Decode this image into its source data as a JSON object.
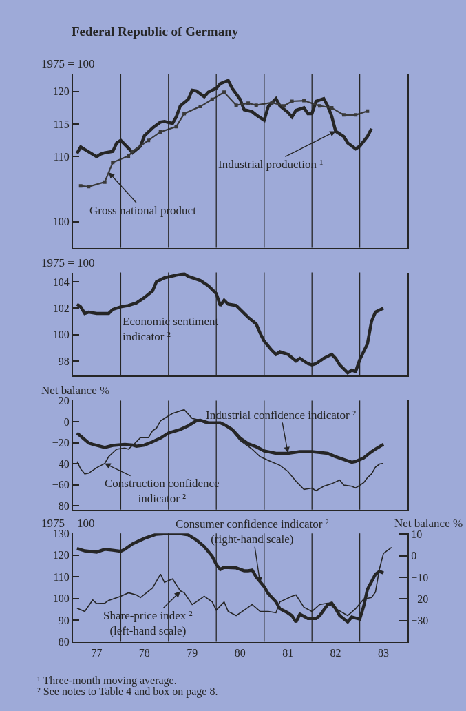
{
  "chart_data": [
    {
      "type": "line",
      "title": "Federal Republic of Germany",
      "ylabel": "1975 = 100",
      "xlim": [
        "1977-01",
        "1984-01"
      ],
      "ylim": [
        96,
        122.7
      ],
      "yticks": [
        100,
        110,
        115,
        120
      ],
      "tick_labels": "y",
      "grid": false,
      "ref_lines": [
        {
          "axis": "x",
          "value": "1978-01"
        },
        {
          "axis": "x",
          "value": "1979-01"
        },
        {
          "axis": "x",
          "value": "1980-01"
        },
        {
          "axis": "x",
          "value": "1981-01"
        },
        {
          "axis": "x",
          "value": "1982-01"
        },
        {
          "axis": "x",
          "value": "1983-01"
        }
      ],
      "series": [
        {
          "color": "#262626",
          "x": [
            "1977-02",
            "1977-03",
            "1977-04",
            "1977-07",
            "1977-08",
            "1977-09",
            "1977-11",
            "1977-12",
            "1978-01",
            "1978-03",
            "1978-04",
            "1978-06",
            "1978-07",
            "1978-09",
            "1978-11",
            "1978-12",
            "1979-02",
            "1979-03",
            "1979-04",
            "1979-06",
            "1979-07",
            "1979-08",
            "1979-10",
            "1979-11",
            "1980-01",
            "1980-02",
            "1980-04",
            "1980-05",
            "1980-07",
            "1980-08",
            "1980-10",
            "1980-11",
            "1981-01",
            "1981-02",
            "1981-04",
            "1981-05",
            "1981-07",
            "1981-08",
            "1981-09",
            "1981-11",
            "1981-12",
            "1982-01",
            "1982-02",
            "1982-04",
            "1982-05",
            "1982-06",
            "1982-07",
            "1982-09",
            "1982-10",
            "1982-12",
            "1983-01",
            "1983-03",
            "1983-04"
          ],
          "values": [
            110.5,
            111.5,
            111.1,
            110.0,
            110.4,
            110.6,
            110.8,
            112.1,
            112.5,
            111.3,
            110.6,
            111.6,
            113.2,
            114.4,
            115.3,
            115.4,
            115.1,
            116.1,
            117.8,
            118.8,
            120.2,
            120.1,
            119.2,
            119.9,
            120.5,
            121.2,
            121.7,
            120.5,
            118.8,
            117.2,
            116.9,
            116.4,
            115.6,
            117.7,
            118.9,
            117.8,
            116.8,
            116.1,
            117.1,
            117.5,
            116.6,
            116.6,
            118.5,
            118.9,
            117.8,
            116.2,
            113.9,
            113.1,
            112.1,
            111.2,
            111.6,
            113.1,
            114.3
          ]
        },
        {
          "color": "#3a3a3a",
          "marker": "square",
          "x": [
            "1977-03",
            "1977-05",
            "1977-09",
            "1977-11",
            "1978-03",
            "1978-04",
            "1978-08",
            "1978-11",
            "1979-03",
            "1979-05",
            "1979-09",
            "1979-12",
            "1980-03",
            "1980-06",
            "1980-09",
            "1980-11",
            "1981-03",
            "1981-06",
            "1981-08",
            "1981-11",
            "1982-03",
            "1982-06",
            "1982-09",
            "1982-12",
            "1983-03"
          ],
          "values": [
            105.5,
            105.4,
            106.1,
            109.1,
            110.1,
            110.8,
            112.5,
            113.8,
            114.6,
            116.6,
            117.7,
            118.8,
            119.9,
            117.9,
            118.2,
            117.9,
            118.3,
            117.8,
            118.5,
            118.6,
            117.8,
            117.5,
            116.4,
            116.4,
            117.0
          ]
        }
      ],
      "annotations": [
        {
          "text": "Industrial production ¹",
          "x": "1982-07",
          "y": 113.9
        },
        {
          "text": "Gross national product",
          "x": "1977-10",
          "y": 107.6
        }
      ]
    },
    {
      "type": "line",
      "ylabel": "1975 = 100",
      "xlim": [
        "1977-01",
        "1984-01"
      ],
      "ylim": [
        96.9,
        104.7
      ],
      "yticks": [
        98,
        100,
        102,
        104
      ],
      "tick_labels": "y",
      "grid": false,
      "ref_lines": [
        {
          "axis": "x",
          "value": "1978-01"
        },
        {
          "axis": "x",
          "value": "1979-01"
        },
        {
          "axis": "x",
          "value": "1980-01"
        },
        {
          "axis": "x",
          "value": "1981-01"
        },
        {
          "axis": "x",
          "value": "1982-01"
        },
        {
          "axis": "x",
          "value": "1983-01"
        }
      ],
      "series": [
        {
          "color": "#262626",
          "x": [
            "1977-02",
            "1977-03",
            "1977-04",
            "1977-05",
            "1977-07",
            "1977-10",
            "1977-11",
            "1978-01",
            "1978-03",
            "1978-05",
            "1978-07",
            "1978-09",
            "1978-10",
            "1978-12",
            "1979-03",
            "1979-05",
            "1979-06",
            "1979-09",
            "1979-11",
            "1980-01",
            "1980-02",
            "1980-03",
            "1980-04",
            "1980-06",
            "1980-08",
            "1980-09",
            "1980-11",
            "1980-12",
            "1981-01",
            "1981-03",
            "1981-04",
            "1981-05",
            "1981-07",
            "1981-09",
            "1981-10",
            "1981-12",
            "1982-01",
            "1982-02",
            "1982-04",
            "1982-06",
            "1982-07",
            "1982-08",
            "1982-10",
            "1982-11",
            "1982-12",
            "1983-01",
            "1983-03",
            "1983-04",
            "1983-05",
            "1983-07"
          ],
          "values": [
            102.3,
            102.1,
            101.6,
            101.7,
            101.6,
            101.6,
            101.9,
            102.1,
            102.2,
            102.4,
            102.8,
            103.3,
            104.0,
            104.3,
            104.5,
            104.6,
            104.4,
            104.1,
            103.7,
            103.1,
            102.2,
            102.6,
            102.3,
            102.2,
            101.6,
            101.3,
            100.8,
            100.1,
            99.5,
            98.8,
            98.5,
            98.7,
            98.5,
            98.0,
            98.2,
            97.8,
            97.7,
            97.8,
            98.2,
            98.5,
            98.2,
            97.7,
            97.1,
            97.3,
            97.2,
            98.1,
            99.3,
            101.0,
            101.7,
            102.0
          ]
        }
      ],
      "annotations": [
        "Economic sentiment\nindicator ²"
      ]
    },
    {
      "type": "line",
      "ylabel": "Net balance %",
      "xlim": [
        "1977-01",
        "1984-01"
      ],
      "ylim": [
        -83.5,
        20
      ],
      "yticks": [
        20,
        0,
        {
          "value": -20,
          "label": "−20"
        },
        {
          "value": -40,
          "label": "−40"
        },
        {
          "value": -60,
          "label": "−60"
        },
        {
          "value": -80,
          "label": "−80"
        }
      ],
      "tick_labels": "y",
      "grid": false,
      "ref_lines": [
        {
          "axis": "x",
          "value": "1978-01"
        },
        {
          "axis": "x",
          "value": "1979-01"
        },
        {
          "axis": "x",
          "value": "1980-01"
        },
        {
          "axis": "x",
          "value": "1981-01"
        },
        {
          "axis": "x",
          "value": "1982-01"
        },
        {
          "axis": "x",
          "value": "1983-01"
        }
      ],
      "series": [
        {
          "color": "#262626",
          "x": [
            "1977-02",
            "1977-03",
            "1977-05",
            "1977-06",
            "1977-09",
            "1977-11",
            "1978-02",
            "1978-04",
            "1978-05",
            "1978-07",
            "1978-09",
            "1978-11",
            "1979-01",
            "1979-04",
            "1979-06",
            "1979-08",
            "1979-09",
            "1979-11",
            "1980-02",
            "1980-03",
            "1980-05",
            "1980-07",
            "1980-09",
            "1980-11",
            "1981-01",
            "1981-02",
            "1981-04",
            "1981-07",
            "1981-10",
            "1982-01",
            "1982-05",
            "1982-07",
            "1982-10",
            "1982-11",
            "1982-12",
            "1983-02",
            "1983-04",
            "1983-05",
            "1983-07"
          ],
          "values": [
            -10.9,
            -13.7,
            -20.3,
            -21.5,
            -24.5,
            -22.6,
            -21.5,
            -22.2,
            -23.3,
            -22.2,
            -19.1,
            -15.6,
            -10.9,
            -7.4,
            -3.9,
            0.8,
            1.3,
            -1.1,
            -1.1,
            -2.7,
            -7.4,
            -15.6,
            -21.0,
            -23.8,
            -27.8,
            -28.5,
            -30.1,
            -30.1,
            -28.5,
            -28.5,
            -30.1,
            -33.2,
            -37.1,
            -38.5,
            -37.8,
            -34.3,
            -28.5,
            -26.1,
            -21.5
          ]
        },
        {
          "color": "#262626",
          "x": [
            "1977-02",
            "1977-03",
            "1977-04",
            "1977-05",
            "1977-07",
            "1977-09",
            "1977-10",
            "1977-12",
            "1978-02",
            "1978-03",
            "1978-05",
            "1978-06",
            "1978-08",
            "1978-09",
            "1978-10",
            "1978-11",
            "1978-12",
            "1979-02",
            "1979-04",
            "1979-05",
            "1979-07",
            "1979-09",
            "1979-10",
            "1980-01",
            "1980-03",
            "1980-05",
            "1980-07",
            "1980-10",
            "1980-12",
            "1981-02",
            "1981-05",
            "1981-07",
            "1981-09",
            "1981-11",
            "1982-01",
            "1982-02",
            "1982-04",
            "1982-06",
            "1982-08",
            "1982-09",
            "1982-11",
            "1982-12",
            "1983-02",
            "1983-03",
            "1983-04",
            "1983-05",
            "1983-06",
            "1983-07"
          ],
          "values": [
            -37.8,
            -44.9,
            -49.6,
            -48.9,
            -43.7,
            -39.7,
            -33.2,
            -26.1,
            -25.0,
            -26.1,
            -19.1,
            -15.1,
            -15.1,
            -8.7,
            -6.2,
            0.8,
            3.1,
            7.8,
            10.2,
            11.3,
            3.1,
            1.3,
            -1.1,
            -1.5,
            -2.7,
            -8.7,
            -17.9,
            -26.1,
            -33.2,
            -36.7,
            -41.4,
            -47.2,
            -56.6,
            -64.3,
            -63.1,
            -65.5,
            -61.3,
            -58.9,
            -55.4,
            -60.1,
            -61.3,
            -62.9,
            -57.8,
            -53.1,
            -49.6,
            -43.2,
            -40.2,
            -39.5
          ]
        }
      ],
      "annotations": [
        {
          "text": "Industrial confidence indicator ²",
          "x": "1981-07",
          "y": -29.6
        },
        {
          "text": "Construction confidence\nindicator ²",
          "x": "1977-09",
          "y": -39.7
        }
      ]
    },
    {
      "type": "line",
      "ylabel": "1975 = 100",
      "y2label": "Net balance %",
      "xlim": [
        "1977-01",
        "1984-01"
      ],
      "xticks": [
        {
          "value": "1977-07",
          "label": "77"
        },
        {
          "value": "1978-07",
          "label": "78"
        },
        {
          "value": "1979-07",
          "label": "79"
        },
        {
          "value": "1980-07",
          "label": "80"
        },
        {
          "value": "1981-07",
          "label": "81"
        },
        {
          "value": "1982-07",
          "label": "82"
        },
        {
          "value": "1983-07",
          "label": "83"
        }
      ],
      "ylim": [
        80,
        130
      ],
      "yticks": [
        80,
        90,
        100,
        110,
        120,
        130
      ],
      "y2lim": [
        -39.8,
        10.4
      ],
      "y2ticks": [
        10,
        0,
        {
          "value": -10,
          "label": "−10"
        },
        {
          "value": -20,
          "label": "−20"
        },
        {
          "value": -30,
          "label": "−30"
        }
      ],
      "grid": false,
      "ref_lines": [
        {
          "axis": "x",
          "value": "1978-01"
        },
        {
          "axis": "x",
          "value": "1979-01"
        },
        {
          "axis": "x",
          "value": "1980-01"
        },
        {
          "axis": "x",
          "value": "1981-01"
        },
        {
          "axis": "x",
          "value": "1982-01"
        },
        {
          "axis": "x",
          "value": "1983-01"
        }
      ],
      "series": [
        {
          "color": "#262626",
          "x": [
            "1977-02",
            "1977-04",
            "1977-06",
            "1977-07",
            "1977-09",
            "1977-10",
            "1977-11",
            "1978-01",
            "1978-03",
            "1978-05",
            "1978-06",
            "1978-09",
            "1978-11",
            "1978-12",
            "1979-02",
            "1979-04",
            "1979-05",
            "1979-07",
            "1979-08",
            "1979-10",
            "1979-12",
            "1980-01",
            "1980-03",
            "1980-04",
            "1980-06",
            "1980-08",
            "1980-10",
            "1980-12",
            "1981-02",
            "1981-04",
            "1981-05",
            "1981-08",
            "1981-09",
            "1981-11",
            "1982-01",
            "1982-03",
            "1982-05",
            "1982-07",
            "1982-10",
            "1982-12",
            "1983-02",
            "1983-04",
            "1983-05",
            "1983-06",
            "1983-07",
            "1983-09"
          ],
          "values": [
            95.5,
            94.0,
            99.3,
            97.6,
            97.8,
            99.1,
            99.7,
            101.0,
            102.6,
            101.6,
            100.4,
            104.8,
            111.2,
            107.4,
            109.0,
            103.5,
            102.6,
            97.2,
            98.4,
            101.0,
            98.4,
            94.6,
            98.4,
            94.0,
            92.1,
            94.6,
            97.2,
            94.0,
            94.0,
            93.4,
            98.4,
            101.0,
            101.6,
            95.9,
            94.0,
            97.2,
            97.8,
            95.3,
            92.1,
            95.3,
            99.7,
            100.4,
            102.9,
            113.7,
            120.7,
            123.5
          ]
        },
        {
          "color": "#262626",
          "axis": "y2",
          "x": [
            "1977-02",
            "1977-04",
            "1977-07",
            "1977-09",
            "1977-11",
            "1978-01",
            "1978-02",
            "1978-04",
            "1978-07",
            "1978-10",
            "1979-01",
            "1979-04",
            "1979-06",
            "1979-08",
            "1979-10",
            "1979-12",
            "1980-01",
            "1980-02",
            "1980-03",
            "1980-06",
            "1980-08",
            "1980-09",
            "1980-10",
            "1980-11",
            "1981-01",
            "1981-02",
            "1981-04",
            "1981-05",
            "1981-07",
            "1981-08",
            "1981-09",
            "1981-10",
            "1981-12",
            "1982-02",
            "1982-03",
            "1982-05",
            "1982-06",
            "1982-07",
            "1982-08",
            "1982-10",
            "1982-11",
            "1983-01",
            "1983-02",
            "1983-03",
            "1983-05",
            "1983-06",
            "1983-07"
          ],
          "values": [
            3.4,
            2.3,
            1.7,
            3.0,
            2.6,
            2.1,
            3.0,
            5.5,
            8.1,
            10.0,
            10.4,
            10.3,
            9.7,
            7.4,
            4.3,
            -0.2,
            -4.0,
            -6.3,
            -5.3,
            -5.6,
            -6.9,
            -6.9,
            -6.6,
            -9.8,
            -14.3,
            -17.5,
            -21.3,
            -24.5,
            -26.4,
            -27.7,
            -30.6,
            -27.0,
            -29.0,
            -29.0,
            -27.7,
            -22.6,
            -21.9,
            -24.5,
            -27.7,
            -30.6,
            -28.3,
            -29.3,
            -23.2,
            -15.5,
            -8.5,
            -7.2,
            -7.9
          ]
        }
      ],
      "annotations": [
        {
          "text": "Consumer confidence indicator ²\n(right-hand scale)",
          "x": "1980-12",
          "y": 107.0
        },
        {
          "text": "Share-price index ²\n(left-hand scale)",
          "x": "1979-04",
          "y": 103.2
        },
        "¹ Three-month moving average.",
        "² See notes to Table 4 and box on page 8."
      ]
    }
  ]
}
